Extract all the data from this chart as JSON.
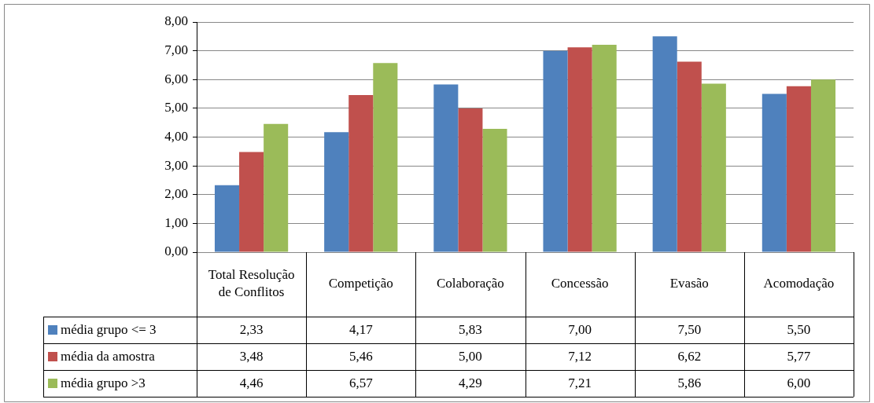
{
  "chart_data": {
    "type": "bar",
    "categories": [
      "Total Resolução de Conflitos",
      "Competição",
      "Colaboração",
      "Concessão",
      "Evasão",
      "Acomodação"
    ],
    "series": [
      {
        "name": "média grupo <= 3",
        "color": "#4f81bd",
        "values": [
          2.33,
          4.17,
          5.83,
          7.0,
          7.5,
          5.5
        ],
        "value_labels": [
          "2,33",
          "4,17",
          "5,83",
          "7,00",
          "7,50",
          "5,50"
        ]
      },
      {
        "name": "média da amostra",
        "color": "#c0504d",
        "values": [
          3.48,
          5.46,
          5.0,
          7.12,
          6.62,
          5.77
        ],
        "value_labels": [
          "3,48",
          "5,46",
          "5,00",
          "7,12",
          "6,62",
          "5,77"
        ]
      },
      {
        "name": "média grupo >3",
        "color": "#9bbb59",
        "values": [
          4.46,
          6.57,
          4.29,
          7.21,
          5.86,
          6.0
        ],
        "value_labels": [
          "4,46",
          "6,57",
          "4,29",
          "7,21",
          "5,86",
          "6,00"
        ]
      }
    ],
    "ylim": [
      0,
      8
    ],
    "yticks": [
      {
        "value": 0,
        "label": "0,00"
      },
      {
        "value": 1,
        "label": "1,00"
      },
      {
        "value": 2,
        "label": "2,00"
      },
      {
        "value": 3,
        "label": "3,00"
      },
      {
        "value": 4,
        "label": "4,00"
      },
      {
        "value": 5,
        "label": "5,00"
      },
      {
        "value": 6,
        "label": "6,00"
      },
      {
        "value": 7,
        "label": "7,00"
      },
      {
        "value": 8,
        "label": "8,00"
      }
    ],
    "grid": "y",
    "legend": "bottom left"
  }
}
